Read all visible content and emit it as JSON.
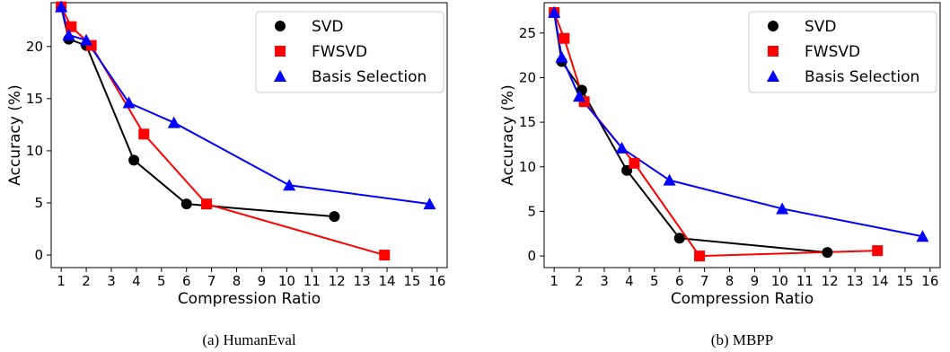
{
  "colors": {
    "SVD": "#000000",
    "FWSVD": "#ff0000",
    "Basis Selection": "#0000ff"
  },
  "chart_data": [
    {
      "type": "line",
      "caption": "(a) HumanEval",
      "xlabel": "Compression Ratio",
      "ylabel": "Accuracy (%)",
      "xlim": [
        0.6,
        16.4
      ],
      "ylim": [
        -1.2,
        24.2
      ],
      "xticks": [
        1,
        2,
        3,
        4,
        5,
        6,
        7,
        8,
        9,
        10,
        11,
        12,
        13,
        14,
        15,
        16
      ],
      "yticks": [
        0,
        5,
        10,
        15,
        20
      ],
      "grid": false,
      "legend": "top-right",
      "series": [
        {
          "name": "SVD",
          "marker": "circle",
          "x": [
            1,
            1.3,
            2,
            3.9,
            6,
            11.9
          ],
          "y": [
            23.8,
            20.7,
            20.1,
            9.1,
            4.9,
            3.7
          ]
        },
        {
          "name": "FWSVD",
          "marker": "square",
          "x": [
            1,
            1.4,
            2.2,
            4.3,
            6.8,
            13.9
          ],
          "y": [
            23.8,
            21.9,
            20.1,
            11.6,
            4.9,
            0.0
          ]
        },
        {
          "name": "Basis Selection",
          "marker": "triangle",
          "x": [
            1,
            1.3,
            2.0,
            3.7,
            5.5,
            10.1,
            15.7
          ],
          "y": [
            23.8,
            21.1,
            20.6,
            14.6,
            12.7,
            6.7,
            4.9
          ]
        }
      ]
    },
    {
      "type": "line",
      "caption": "(b) MBPP",
      "xlabel": "Compression Ratio",
      "ylabel": "Accuracy (%)",
      "xlim": [
        0.6,
        16.4
      ],
      "ylim": [
        -1.3,
        28.4
      ],
      "xticks": [
        1,
        2,
        3,
        4,
        5,
        6,
        7,
        8,
        9,
        10,
        11,
        12,
        13,
        14,
        15,
        16
      ],
      "yticks": [
        0,
        5,
        10,
        15,
        20,
        25
      ],
      "grid": false,
      "legend": "top-right",
      "series": [
        {
          "name": "SVD",
          "marker": "circle",
          "x": [
            1,
            1.3,
            2.1,
            3.9,
            6,
            11.9
          ],
          "y": [
            27.3,
            21.8,
            18.6,
            9.6,
            2.0,
            0.4
          ]
        },
        {
          "name": "FWSVD",
          "marker": "square",
          "x": [
            1,
            1.4,
            2.2,
            4.2,
            6.8,
            13.9
          ],
          "y": [
            27.3,
            24.4,
            17.3,
            10.4,
            0.0,
            0.6
          ]
        },
        {
          "name": "Basis Selection",
          "marker": "triangle",
          "x": [
            1,
            1.3,
            2.0,
            3.7,
            5.6,
            10.1,
            15.7
          ],
          "y": [
            27.3,
            22.3,
            17.9,
            12.1,
            8.5,
            5.3,
            2.2
          ]
        }
      ]
    }
  ]
}
